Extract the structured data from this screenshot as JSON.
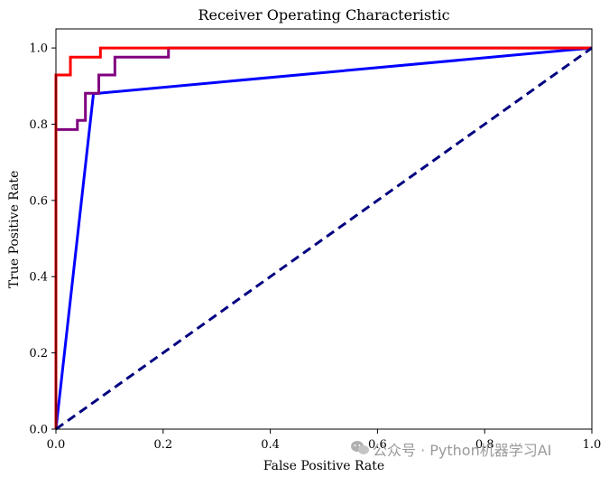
{
  "chart_data": {
    "type": "line",
    "title": "Receiver Operating Characteristic",
    "xlabel": "False Positive Rate",
    "ylabel": "True Positive Rate",
    "xlim": [
      0,
      1
    ],
    "ylim": [
      0,
      1.05
    ],
    "xticks": [
      "0.0",
      "0.2",
      "0.4",
      "0.6",
      "0.8",
      "1.0"
    ],
    "yticks": [
      "0.0",
      "0.2",
      "0.4",
      "0.6",
      "0.8",
      "1.0"
    ],
    "grid": false,
    "legend": "none",
    "series": [
      {
        "color": "#0000ff",
        "style": "solid",
        "points": [
          [
            0,
            0
          ],
          [
            0.07,
            0.88
          ],
          [
            1,
            1
          ]
        ]
      },
      {
        "color": "#800080",
        "style": "solid",
        "points": [
          [
            0,
            0
          ],
          [
            0,
            0.786
          ],
          [
            0.04,
            0.786
          ],
          [
            0.04,
            0.81
          ],
          [
            0.055,
            0.81
          ],
          [
            0.055,
            0.881
          ],
          [
            0.08,
            0.881
          ],
          [
            0.08,
            0.929
          ],
          [
            0.11,
            0.929
          ],
          [
            0.11,
            0.976
          ],
          [
            0.21,
            0.976
          ],
          [
            0.21,
            1
          ],
          [
            1,
            1
          ]
        ]
      },
      {
        "color": "#ff0000",
        "style": "solid",
        "points": [
          [
            0,
            0
          ],
          [
            0,
            0.929
          ],
          [
            0.027,
            0.929
          ],
          [
            0.027,
            0.976
          ],
          [
            0.083,
            0.976
          ],
          [
            0.083,
            1
          ],
          [
            1,
            1
          ]
        ]
      },
      {
        "color": "#000080",
        "style": "dashed",
        "points": [
          [
            0,
            0
          ],
          [
            1,
            1
          ]
        ]
      }
    ]
  },
  "watermark": {
    "icon": "wechat-icon",
    "text": "公众号 · Python机器学习AI"
  }
}
